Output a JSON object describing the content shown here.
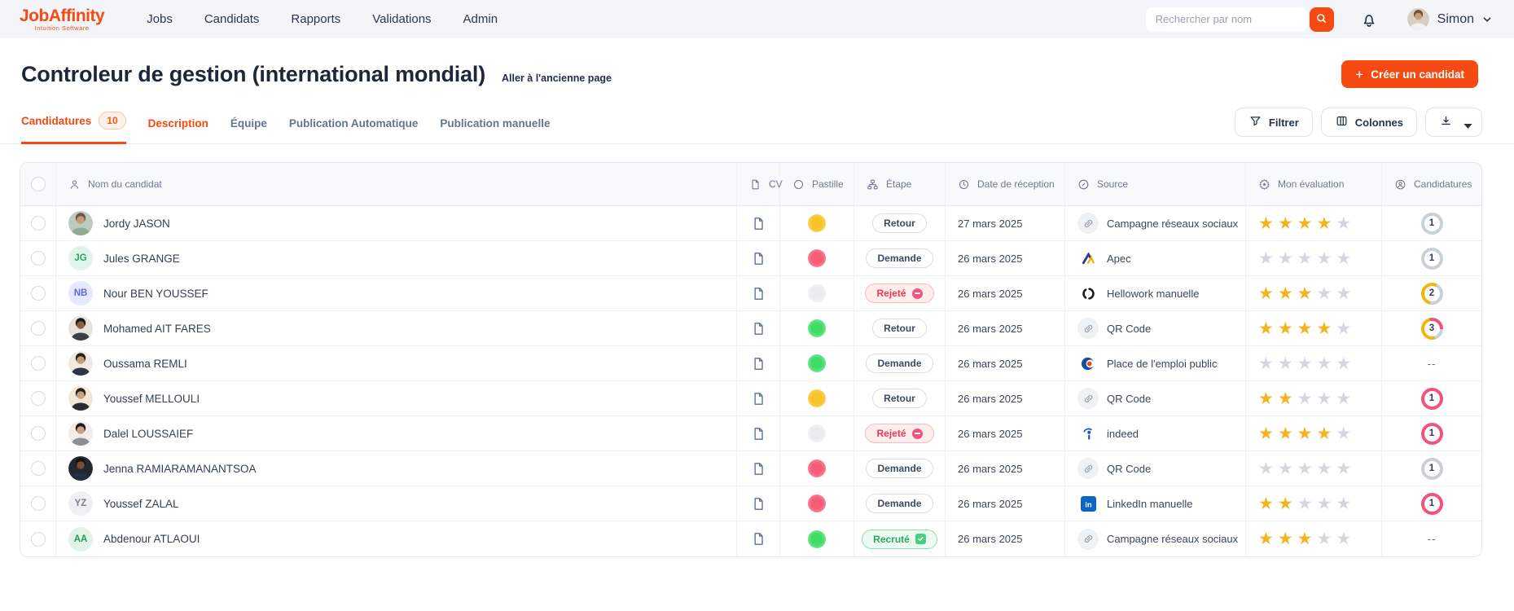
{
  "colors": {
    "accent": "#F64A12",
    "star_filled": "#F5B41F",
    "star_empty": "#D3D8E0",
    "ring_gray": "#C7D1D9",
    "ring_pink": "#F2537A",
    "ring_yellow": "#F2B50C"
  },
  "topbar": {
    "logo": {
      "title": "JobAffinity",
      "subtitle": "Intuition Software"
    },
    "nav": [
      {
        "label": "Jobs"
      },
      {
        "label": "Candidats"
      },
      {
        "label": "Rapports"
      },
      {
        "label": "Validations"
      },
      {
        "label": "Admin"
      }
    ],
    "search_placeholder": "Rechercher par nom",
    "user_name": "Simon"
  },
  "page": {
    "title": "Controleur de gestion (international mondial)",
    "old_page_link": "Aller à l'ancienne page",
    "create_button": "Créer un candidat"
  },
  "tabs": [
    {
      "label": "Candidatures",
      "badge": "10",
      "active": true
    },
    {
      "label": "Description",
      "hot": true
    },
    {
      "label": "Équipe"
    },
    {
      "label": "Publication Automatique"
    },
    {
      "label": "Publication manuelle"
    }
  ],
  "toolbar": {
    "filter_label": "Filtrer",
    "columns_label": "Colonnes"
  },
  "table": {
    "headers": [
      {
        "key": "select",
        "icon": "checkbox",
        "label": ""
      },
      {
        "key": "name",
        "icon": "person-icon",
        "label": "Nom du candidat"
      },
      {
        "key": "cv",
        "icon": "document-icon",
        "label": "CV"
      },
      {
        "key": "pastille",
        "icon": "circle-icon",
        "label": "Pastille"
      },
      {
        "key": "etape",
        "icon": "orgchart-icon",
        "label": "Étape"
      },
      {
        "key": "date",
        "icon": "clock-icon",
        "label": "Date de réception"
      },
      {
        "key": "source",
        "icon": "link-circle-icon",
        "label": "Source"
      },
      {
        "key": "evaluation",
        "icon": "rosette-star-icon",
        "label": "Mon évaluation"
      },
      {
        "key": "applications",
        "icon": "person-circle-icon",
        "label": "Candidatures"
      }
    ],
    "rows": [
      {
        "name": "Jordy JASON",
        "avatar": {
          "type": "photo",
          "bg": "#BCCBC0",
          "hair": "#6D5743",
          "skin": "#C89A76",
          "shirt": "#8FAC92"
        },
        "pastille": {
          "main": "#F7C325",
          "edge": "#FBDE8E"
        },
        "stage": {
          "label": "Retour",
          "variant": "default"
        },
        "date": "27 mars 2025",
        "source": {
          "label": "Campagne réseaux sociaux",
          "icon": "link"
        },
        "rating": 4,
        "applications": {
          "value": "1",
          "ring": {
            "from": 0,
            "segments": [
              {
                "color": "#C7D1D9",
                "pct": 100
              }
            ]
          }
        }
      },
      {
        "name": "Jules GRANGE",
        "avatar": {
          "type": "initials",
          "text": "JG",
          "bg": "#DFF5E9",
          "color": "#2FA36B"
        },
        "pastille": {
          "main": "#F65C77",
          "edge": "#FA9FB0"
        },
        "stage": {
          "label": "Demande",
          "variant": "default"
        },
        "date": "26 mars 2025",
        "source": {
          "label": "Apec",
          "icon": "apec"
        },
        "rating": 0,
        "applications": {
          "value": "1",
          "ring": {
            "from": 0,
            "segments": [
              {
                "color": "#C7D1D9",
                "pct": 100
              }
            ]
          }
        }
      },
      {
        "name": "Nour BEN YOUSSEF",
        "avatar": {
          "type": "initials",
          "text": "NB",
          "bg": "#E4E9FE",
          "color": "#5E6AD2"
        },
        "pastille": {
          "main": "#E9ECEF",
          "edge": "#F6F8F9"
        },
        "stage": {
          "label": "Rejeté",
          "variant": "rejected"
        },
        "date": "26 mars 2025",
        "source": {
          "label": "Hellowork manuelle",
          "icon": "hellowork"
        },
        "rating": 3,
        "applications": {
          "value": "2",
          "ring": {
            "from": 190,
            "segments": [
              {
                "color": "#F2B50C",
                "pct": 55
              },
              {
                "color": "#C7D1D9",
                "pct": 100
              }
            ]
          }
        }
      },
      {
        "name": "Mohamed AIT FARES",
        "avatar": {
          "type": "photo",
          "bg": "#E7E2DB",
          "hair": "#1F1A17",
          "skin": "#8A5F43",
          "shirt": "#3A3F4A"
        },
        "pastille": {
          "main": "#3EDC64",
          "edge": "#9CF0B0"
        },
        "stage": {
          "label": "Retour",
          "variant": "default"
        },
        "date": "26 mars 2025",
        "source": {
          "label": "QR Code",
          "icon": "link"
        },
        "rating": 4,
        "applications": {
          "value": "3",
          "ring": {
            "from": -15,
            "segments": [
              {
                "color": "#F2537A",
                "pct": 30
              },
              {
                "color": "#C7D1D9",
                "pct": 50
              },
              {
                "color": "#F2B50C",
                "pct": 100
              }
            ]
          }
        }
      },
      {
        "name": "Oussama REMLI",
        "avatar": {
          "type": "photo",
          "bg": "#F0E8E2",
          "hair": "#23201E",
          "skin": "#C79B72",
          "shirt": "#2E3547"
        },
        "pastille": {
          "main": "#3EDC64",
          "edge": "#9CF0B0"
        },
        "stage": {
          "label": "Demande",
          "variant": "default"
        },
        "date": "26 mars 2025",
        "source": {
          "label": "Place de l'emploi public",
          "icon": "place-emploi-public"
        },
        "rating": 0,
        "applications": {
          "value": "--"
        }
      },
      {
        "name": "Youssef MELLOULI",
        "avatar": {
          "type": "photo",
          "bg": "#F3E7D8",
          "hair": "#2A2118",
          "skin": "#CAA27C",
          "shirt": "#2B2B33"
        },
        "pastille": {
          "main": "#F7C325",
          "edge": "#FBDE8E"
        },
        "stage": {
          "label": "Retour",
          "variant": "default"
        },
        "date": "26 mars 2025",
        "source": {
          "label": "QR Code",
          "icon": "link"
        },
        "rating": 2,
        "applications": {
          "value": "1",
          "ring": {
            "from": 0,
            "segments": [
              {
                "color": "#F2537A",
                "pct": 100
              }
            ]
          }
        }
      },
      {
        "name": "Dalel LOUSSAIEF",
        "avatar": {
          "type": "photo",
          "bg": "#F2EDE9",
          "hair": "#1E1A19",
          "skin": "#C9A284",
          "shirt": "#8A8F98"
        },
        "pastille": {
          "main": "#E9ECEF",
          "edge": "#F6F8F9"
        },
        "stage": {
          "label": "Rejeté",
          "variant": "rejected"
        },
        "date": "26 mars 2025",
        "source": {
          "label": "indeed",
          "icon": "indeed"
        },
        "rating": 4,
        "applications": {
          "value": "1",
          "ring": {
            "from": 0,
            "segments": [
              {
                "color": "#F2537A",
                "pct": 100
              }
            ]
          }
        }
      },
      {
        "name": "Jenna RAMIARAMANANTSOA",
        "avatar": {
          "type": "photo",
          "bg": "#23272F",
          "hair": "#141217",
          "skin": "#7A4A33",
          "shirt": "#233042"
        },
        "pastille": {
          "main": "#F65C77",
          "edge": "#FA9FB0"
        },
        "stage": {
          "label": "Demande",
          "variant": "default"
        },
        "date": "26 mars 2025",
        "source": {
          "label": "QR Code",
          "icon": "link"
        },
        "rating": 0,
        "applications": {
          "value": "1",
          "ring": {
            "from": 0,
            "segments": [
              {
                "color": "#C7D1D9",
                "pct": 100
              }
            ]
          }
        }
      },
      {
        "name": "Youssef ZALAL",
        "avatar": {
          "type": "initials",
          "text": "YZ",
          "bg": "#EEF0F3",
          "color": "#78828F"
        },
        "pastille": {
          "main": "#F65C77",
          "edge": "#FA9FB0"
        },
        "stage": {
          "label": "Demande",
          "variant": "default"
        },
        "date": "26 mars 2025",
        "source": {
          "label": "LinkedIn manuelle",
          "icon": "linkedin"
        },
        "rating": 2,
        "applications": {
          "value": "1",
          "ring": {
            "from": 0,
            "segments": [
              {
                "color": "#F2537A",
                "pct": 100
              }
            ]
          }
        }
      },
      {
        "name": "Abdenour ATLAOUI",
        "avatar": {
          "type": "initials",
          "text": "AA",
          "bg": "#E2F4EA",
          "color": "#1F9D57"
        },
        "pastille": {
          "main": "#3EDC64",
          "edge": "#9CF0B0"
        },
        "stage": {
          "label": "Recruté",
          "variant": "recruited"
        },
        "date": "26 mars 2025",
        "source": {
          "label": "Campagne réseaux sociaux",
          "icon": "link"
        },
        "rating": 3,
        "applications": {
          "value": "--"
        }
      }
    ]
  }
}
